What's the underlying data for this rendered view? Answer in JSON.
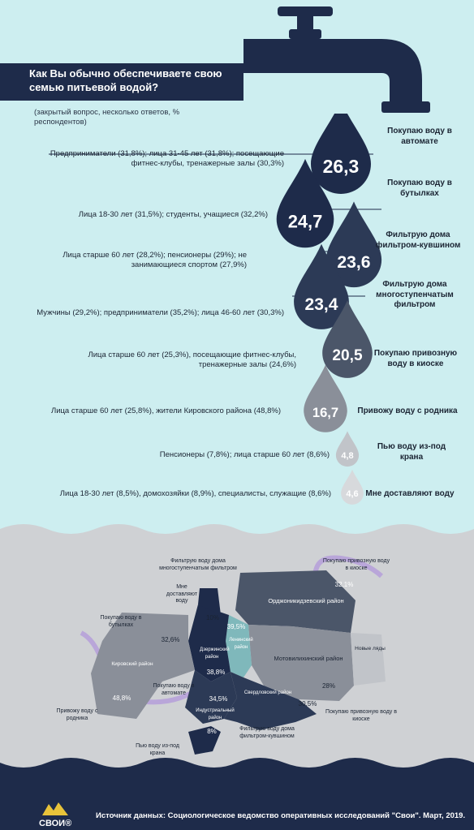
{
  "header": {
    "title": "Как Вы обычно обеспечиваете свою семью питьевой водой?",
    "subtitle": "(закрытый вопрос, несколько ответов, % респондентов)"
  },
  "chart_data": {
    "type": "bar",
    "title": "Как Вы обычно обеспечиваете свою семью питьевой водой?",
    "categories": [
      "Покупаю воду в автомате",
      "Покупаю воду в бутылках",
      "Фильтрую дома фильтром-кувшином",
      "Фильтрую дома многоступенчатым фильтром",
      "Покупаю привозную воду в киоске",
      "Привожу воду с родника",
      "Пью воду из-под крана",
      "Мне доставляют воду"
    ],
    "values": [
      26.3,
      24.7,
      23.6,
      23.4,
      20.5,
      16.7,
      4.8,
      4.6
    ],
    "value_labels": [
      "26,3",
      "24,7",
      "23,6",
      "23,4",
      "20,5",
      "16,7",
      "4,8",
      "4,6"
    ],
    "segments": [
      "Предприниматели (31,8%); лица 31-45 лет (31,8%); посещающие фитнес-клубы, тренажерные залы (30,3%)",
      "Лица 18-30 лет (31,5%); студенты, учащиеся (32,2%)",
      "Лица старше 60 лет (28,2%); пенсионеры (29%); не занимающиеся спортом (27,9%)",
      "Мужчины (29,2%); предприниматели (35,2%); лица 46-60 лет (30,3%)",
      "Лица старше 60 лет (25,3%), посещающие фитнес-клубы, тренажерные залы (24,6%)",
      "Лица старше 60 лет (25,8%), жители Кировского района (48,8%)",
      "Пенсионеры (7,8%); лица старше 60 лет (8,6%)",
      "Лица 18-30 лет (8,5%), домохозяйки (8,9%), специалисты, служащие (8,6%)"
    ],
    "colors": [
      "#1e2b4a",
      "#1e2b4a",
      "#2c3a56",
      "#2c3a56",
      "#4b5669",
      "#8a8f99",
      "#c1c4c9",
      "#d7d9dc"
    ]
  },
  "map": {
    "districts": [
      {
        "name": "Орджоникидзевский район",
        "value": "32,1%",
        "answer": "Покупаю привозную воду в киоске",
        "color": "#4b5669"
      },
      {
        "name": "Мотовилихинский район",
        "value": "28%",
        "answer": "Покупаю привозную воду в киоске",
        "color": "#8a8f99"
      },
      {
        "name": "Новые ляды",
        "value": "",
        "answer": "",
        "color": "#c1c4c9"
      },
      {
        "name": "Ленинский район",
        "value": "39,5%",
        "answer": "Фильтрую воду дома многоступенчатым фильтром",
        "color": "#7fb8bb"
      },
      {
        "name": "Дзержинский район",
        "value": "38,8%",
        "answer": "Покупаю воду в автомате",
        "color": "#1e2b4a"
      },
      {
        "name": "Кировский район",
        "value": "48,8%",
        "answer": "Привожу воду с родника",
        "color": "#8a8f99"
      },
      {
        "name": "Индустриальный район",
        "value": "34,5%",
        "answer": "",
        "color": "#2c3a56"
      },
      {
        "name": "Свердловский район",
        "value": "30,5%",
        "answer": "Фильтрую воду дома фильтром-кувшином",
        "color": "#2c3a56"
      }
    ],
    "extra_values": {
      "mne_dostavlyayut": "10%",
      "butylki": "32,6%",
      "kran": "8%"
    },
    "labels": {
      "l1": "Фильтрую воду дома многоступенчатым фильтром",
      "l2": "Мне доставляют воду",
      "l3": "Покупаю воду в бутылках",
      "l4": "Привожу воду с родника",
      "l5": "Покупаю воду в автомате",
      "l6": "Пью воду из-под крана",
      "l7": "Фильтрую воду дома фильтром-кувшином",
      "l8": "Покупаю привозную воду в киоске",
      "l9": "Покупаю привозную воду в киоске"
    }
  },
  "footer": {
    "source": "Источник данных: Социологическое ведомство оперативных исследований \"Свои\". Март, 2019.",
    "logo": "СВОИ®"
  },
  "colors": {
    "background": "#cdeef0",
    "map_background": "#cfd1d4",
    "dark": "#1e2b4a",
    "river": "#b9a6d9"
  }
}
